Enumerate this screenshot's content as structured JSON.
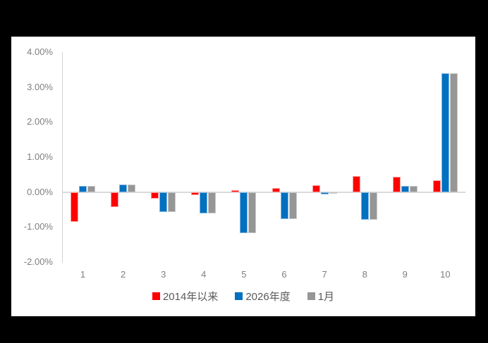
{
  "chart_data": {
    "type": "bar",
    "title": "",
    "categories": [
      "1",
      "2",
      "3",
      "4",
      "5",
      "6",
      "7",
      "8",
      "9",
      "10"
    ],
    "series": [
      {
        "name": "2014年以来",
        "color": "#FF0000",
        "border_color": "#FF9B9B",
        "values": [
          -0.85,
          -0.42,
          -0.18,
          -0.08,
          0.05,
          0.11,
          0.19,
          0.45,
          0.43,
          0.33
        ]
      },
      {
        "name": "2026年度",
        "color": "#0070C0",
        "border_color": "#84B6DF",
        "values": [
          0.17,
          0.22,
          -0.58,
          -0.62,
          -1.17,
          -0.78,
          -0.07,
          -0.8,
          0.18,
          3.4
        ]
      },
      {
        "name": "1月",
        "color": "#969696",
        "border_color": "#C8C8C8",
        "values": [
          0.17,
          0.22,
          -0.57,
          -0.62,
          -1.17,
          -0.77,
          -0.05,
          -0.8,
          0.18,
          3.4
        ]
      }
    ],
    "ylim": [
      -2,
      4
    ],
    "y_ticks": [
      {
        "label": "4.00%",
        "value": 4
      },
      {
        "label": "3.00%",
        "value": 3
      },
      {
        "label": "2.00%",
        "value": 2
      },
      {
        "label": "1.00%",
        "value": 1
      },
      {
        "label": "0.00%",
        "value": 0
      },
      {
        "label": "-1.00%",
        "value": -1
      },
      {
        "label": "-2.00%",
        "value": -2
      }
    ],
    "grid": false,
    "legend_position": "bottom",
    "xlabel": "",
    "ylabel": ""
  },
  "colors": {
    "page_background": "#000000",
    "chart_background": "#FFFFFF",
    "axis_line": "#D2D2D2",
    "zero_line": "#D9D9D9",
    "tick_label": "#7F7F7F",
    "legend_text": "#595959"
  }
}
